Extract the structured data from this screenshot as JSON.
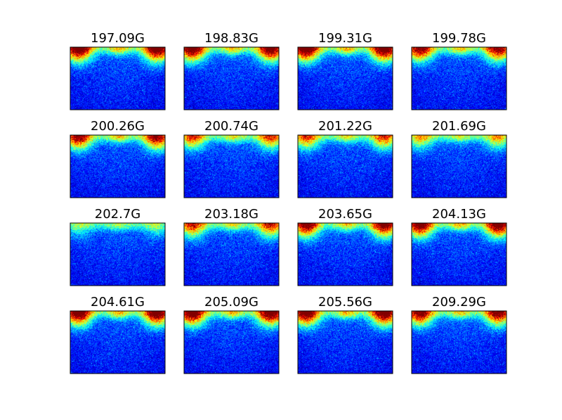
{
  "chart_data": {
    "type": "heatmap",
    "grid": {
      "rows": 4,
      "cols": 4
    },
    "colormap": "jet",
    "colormap_colors": [
      "#00007f",
      "#0000ff",
      "#00ffff",
      "#ffff00",
      "#ff0000",
      "#7f0000"
    ],
    "axes_visible": false,
    "panels": [
      {
        "title": "197.09G",
        "intensity": 1.0
      },
      {
        "title": "198.83G",
        "intensity": 0.95
      },
      {
        "title": "199.31G",
        "intensity": 1.0
      },
      {
        "title": "199.78G",
        "intensity": 0.85
      },
      {
        "title": "200.26G",
        "intensity": 0.85
      },
      {
        "title": "200.74G",
        "intensity": 0.65
      },
      {
        "title": "201.22G",
        "intensity": 0.65
      },
      {
        "title": "201.69G",
        "intensity": 0.5
      },
      {
        "title": "202.7G",
        "intensity": 0.3
      },
      {
        "title": "203.18G",
        "intensity": 0.7
      },
      {
        "title": "203.65G",
        "intensity": 0.9
      },
      {
        "title": "204.13G",
        "intensity": 0.95
      },
      {
        "title": "204.61G",
        "intensity": 1.0
      },
      {
        "title": "205.09G",
        "intensity": 1.0
      },
      {
        "title": "205.56G",
        "intensity": 1.0
      },
      {
        "title": "209.29G",
        "intensity": 0.9
      }
    ]
  }
}
